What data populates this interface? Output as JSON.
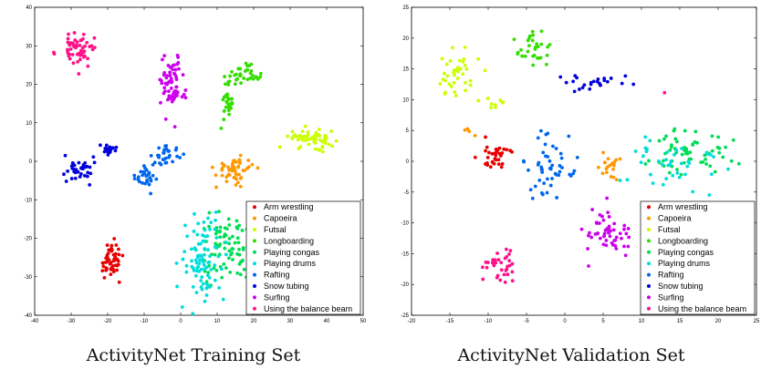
{
  "chart_data": [
    {
      "type": "scatter",
      "title": "",
      "caption": "ActivityNet Training Set",
      "xlabel": "",
      "ylabel": "",
      "xlim": [
        -40,
        50
      ],
      "ylim": [
        -40,
        40
      ],
      "xticks": [
        -40,
        -30,
        -20,
        -10,
        0,
        10,
        20,
        30,
        40,
        50
      ],
      "yticks": [
        -40,
        -30,
        -20,
        -10,
        0,
        10,
        20,
        30,
        40
      ],
      "legend_position": "bottom-right",
      "grid": false,
      "series": [
        {
          "name": "Arm wrestling",
          "color": "#e60000",
          "clusters": [
            {
              "cx": -19,
              "cy": -26,
              "sx": 2.2,
              "sy": 3.2,
              "n": 50
            }
          ]
        },
        {
          "name": "Capoeira",
          "color": "#ff9900",
          "clusters": [
            {
              "cx": 15,
              "cy": -2,
              "sx": 3.5,
              "sy": 2.3,
              "n": 55
            }
          ]
        },
        {
          "name": "Futsal",
          "color": "#ccff00",
          "clusters": [
            {
              "cx": 36,
              "cy": 6,
              "sx": 4.5,
              "sy": 1.5,
              "n": 60
            }
          ]
        },
        {
          "name": "Longboarding",
          "color": "#33dd00",
          "clusters": [
            {
              "cx": 17,
              "cy": 22,
              "sx": 3,
              "sy": 1.8,
              "n": 35
            },
            {
              "cx": 13,
              "cy": 15,
              "sx": 1.3,
              "sy": 3,
              "n": 30
            }
          ]
        },
        {
          "name": "Playing congas",
          "color": "#00dd55",
          "clusters": [
            {
              "cx": 13,
              "cy": -23,
              "sx": 5,
              "sy": 6,
              "n": 80
            }
          ]
        },
        {
          "name": "Playing drums",
          "color": "#00dddd",
          "clusters": [
            {
              "cx": 6,
              "cy": -25,
              "sx": 4,
              "sy": 7.5,
              "n": 90
            }
          ]
        },
        {
          "name": "Rafting",
          "color": "#0066ee",
          "clusters": [
            {
              "cx": -9,
              "cy": -3.5,
              "sx": 2.2,
              "sy": 2.5,
              "n": 30
            },
            {
              "cx": -4,
              "cy": 1.5,
              "sx": 2.5,
              "sy": 1.5,
              "n": 30
            }
          ]
        },
        {
          "name": "Snow tubing",
          "color": "#0000dd",
          "clusters": [
            {
              "cx": -28,
              "cy": -2,
              "sx": 2.5,
              "sy": 2.5,
              "n": 35
            },
            {
              "cx": -20,
              "cy": 3.3,
              "sx": 2,
              "sy": 1,
              "n": 15
            }
          ]
        },
        {
          "name": "Surfing",
          "color": "#cc00ee",
          "clusters": [
            {
              "cx": -2.5,
              "cy": 20,
              "sx": 2.4,
              "sy": 5,
              "n": 70
            }
          ]
        },
        {
          "name": "Using the balance beam",
          "color": "#ff1188",
          "clusters": [
            {
              "cx": -28,
              "cy": 29,
              "sx": 3.5,
              "sy": 2.8,
              "n": 60
            }
          ]
        }
      ]
    },
    {
      "type": "scatter",
      "title": "",
      "caption": "ActivityNet Validation Set",
      "xlabel": "",
      "ylabel": "",
      "xlim": [
        -20,
        25
      ],
      "ylim": [
        -25,
        25
      ],
      "xticks": [
        -20,
        -15,
        -10,
        -5,
        0,
        5,
        10,
        15,
        20,
        25
      ],
      "yticks": [
        -25,
        -20,
        -15,
        -10,
        -5,
        0,
        5,
        10,
        15,
        20,
        25
      ],
      "legend_position": "bottom-right",
      "grid": false,
      "series": [
        {
          "name": "Arm wrestling",
          "color": "#e60000",
          "clusters": [
            {
              "cx": -9,
              "cy": 1,
              "sx": 1.5,
              "sy": 2,
              "n": 35
            }
          ]
        },
        {
          "name": "Capoeira",
          "color": "#ff9900",
          "clusters": [
            {
              "cx": 6,
              "cy": -1,
              "sx": 1,
              "sy": 1.5,
              "n": 20
            },
            {
              "cx": -12.5,
              "cy": 4.5,
              "sx": 0.6,
              "sy": 1,
              "n": 4
            }
          ]
        },
        {
          "name": "Futsal",
          "color": "#ccff00",
          "clusters": [
            {
              "cx": -14,
              "cy": 13.5,
              "sx": 2,
              "sy": 2.5,
              "n": 40
            },
            {
              "cx": -9,
              "cy": 9.5,
              "sx": 1,
              "sy": 1,
              "n": 8
            }
          ]
        },
        {
          "name": "Longboarding",
          "color": "#33dd00",
          "clusters": [
            {
              "cx": -4,
              "cy": 18,
              "sx": 1.5,
              "sy": 2,
              "n": 30
            }
          ]
        },
        {
          "name": "Playing congas",
          "color": "#00dd55",
          "clusters": [
            {
              "cx": 17,
              "cy": 1.5,
              "sx": 3.5,
              "sy": 2.7,
              "n": 60
            }
          ]
        },
        {
          "name": "Playing drums",
          "color": "#00dddd",
          "clusters": [
            {
              "cx": 14,
              "cy": 0,
              "sx": 4,
              "sy": 3.5,
              "n": 40
            }
          ]
        },
        {
          "name": "Rafting",
          "color": "#0066ee",
          "clusters": [
            {
              "cx": -2,
              "cy": -1,
              "sx": 2,
              "sy": 3.5,
              "n": 50
            }
          ]
        },
        {
          "name": "Snow tubing",
          "color": "#0000dd",
          "clusters": [
            {
              "cx": 4,
              "cy": 13,
              "sx": 3,
              "sy": 1.2,
              "n": 25
            }
          ]
        },
        {
          "name": "Surfing",
          "color": "#cc00ee",
          "clusters": [
            {
              "cx": 5.5,
              "cy": -12,
              "sx": 2,
              "sy": 2.5,
              "n": 55
            }
          ]
        },
        {
          "name": "Using the balance beam",
          "color": "#ff1188",
          "clusters": [
            {
              "cx": -8.5,
              "cy": -17.5,
              "sx": 1.5,
              "sy": 2,
              "n": 35
            },
            {
              "cx": 13,
              "cy": 11,
              "sx": 0.1,
              "sy": 0.1,
              "n": 1
            }
          ]
        }
      ]
    }
  ]
}
